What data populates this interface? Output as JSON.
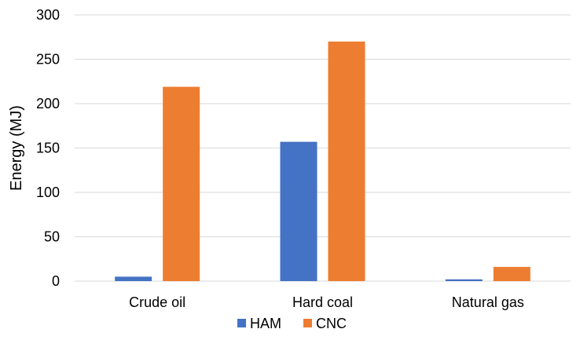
{
  "chart_data": {
    "type": "bar",
    "title": "",
    "xlabel": "",
    "ylabel": "Energy (MJ)",
    "ylim": [
      0,
      300
    ],
    "yticks": [
      0,
      50,
      100,
      150,
      200,
      250,
      300
    ],
    "grid": true,
    "legend_position": "bottom",
    "categories": [
      "Crude oil",
      "Hard coal",
      "Natural gas"
    ],
    "series": [
      {
        "name": "HAM",
        "color": "#4472C4",
        "values": [
          5,
          157,
          2
        ]
      },
      {
        "name": "CNC",
        "color": "#ED7D31",
        "values": [
          219,
          270,
          16
        ]
      }
    ]
  }
}
